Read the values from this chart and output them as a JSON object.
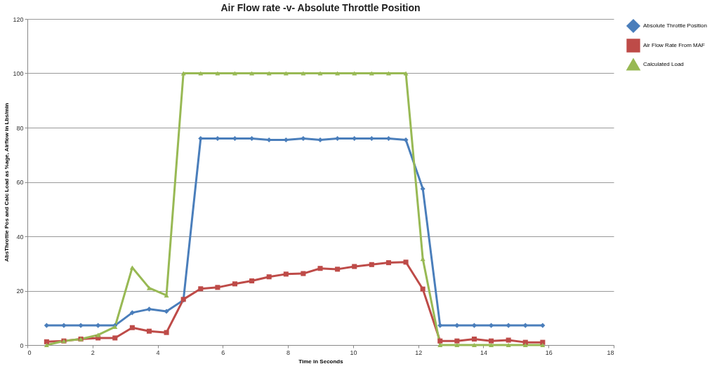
{
  "chart_data": {
    "type": "line",
    "title": "Air Flow rate -v- Absolute Throttle Position",
    "xlabel": "Time in Seconds",
    "ylabel": "AbsThrottle Pos and Calc Load as %age, Airflow in Lbs/min",
    "x": [
      0.59,
      1.12,
      1.64,
      2.17,
      2.69,
      3.22,
      3.74,
      4.27,
      4.79,
      5.32,
      5.84,
      6.37,
      6.89,
      7.42,
      7.94,
      8.47,
      8.99,
      9.52,
      10.04,
      10.57,
      11.09,
      11.62,
      12.14,
      12.67,
      13.19,
      13.72,
      14.24,
      14.77,
      15.29,
      15.82
    ],
    "series": [
      {
        "name": "Absolute Throttle Position",
        "color": "#4a7ebb",
        "marker": "diamond",
        "values": [
          7.2,
          7.2,
          7.2,
          7.2,
          7.2,
          11.9,
          13.2,
          12.4,
          16.5,
          76,
          76,
          76,
          76,
          75.5,
          75.5,
          76,
          75.5,
          76,
          76,
          76,
          76,
          75.5,
          57.5,
          7.2,
          7.2,
          7.2,
          7.2,
          7.2,
          7.2,
          7.2
        ]
      },
      {
        "name": "Air Flow Rate From MAF",
        "color": "#be4b48",
        "marker": "square",
        "values": [
          1.2,
          1.5,
          2.2,
          2.6,
          2.6,
          6.4,
          5.1,
          4.6,
          16.8,
          20.7,
          21.2,
          22.5,
          23.6,
          25.1,
          26.1,
          26.3,
          28.2,
          27.9,
          28.9,
          29.6,
          30.3,
          30.5,
          20.6,
          1.5,
          1.5,
          2.2,
          1.5,
          1.8,
          1,
          1
        ]
      },
      {
        "name": "Calculated Load",
        "color": "#98b954",
        "marker": "triangle",
        "values": [
          0,
          1.5,
          2.2,
          3.7,
          6.7,
          28.5,
          21,
          18.3,
          100,
          100,
          100,
          100,
          100,
          100,
          100,
          100,
          100,
          100,
          100,
          100,
          100,
          100,
          31.7,
          0,
          0,
          0,
          0,
          0,
          0,
          0
        ]
      }
    ],
    "xlim": [
      0,
      18
    ],
    "xticks": [
      0,
      2,
      4,
      6,
      8,
      10,
      12,
      14,
      16,
      18
    ],
    "ylim": [
      0,
      120
    ],
    "yticks": [
      0,
      20,
      40,
      60,
      80,
      100,
      120
    ],
    "grid": "y",
    "legend": "right"
  }
}
